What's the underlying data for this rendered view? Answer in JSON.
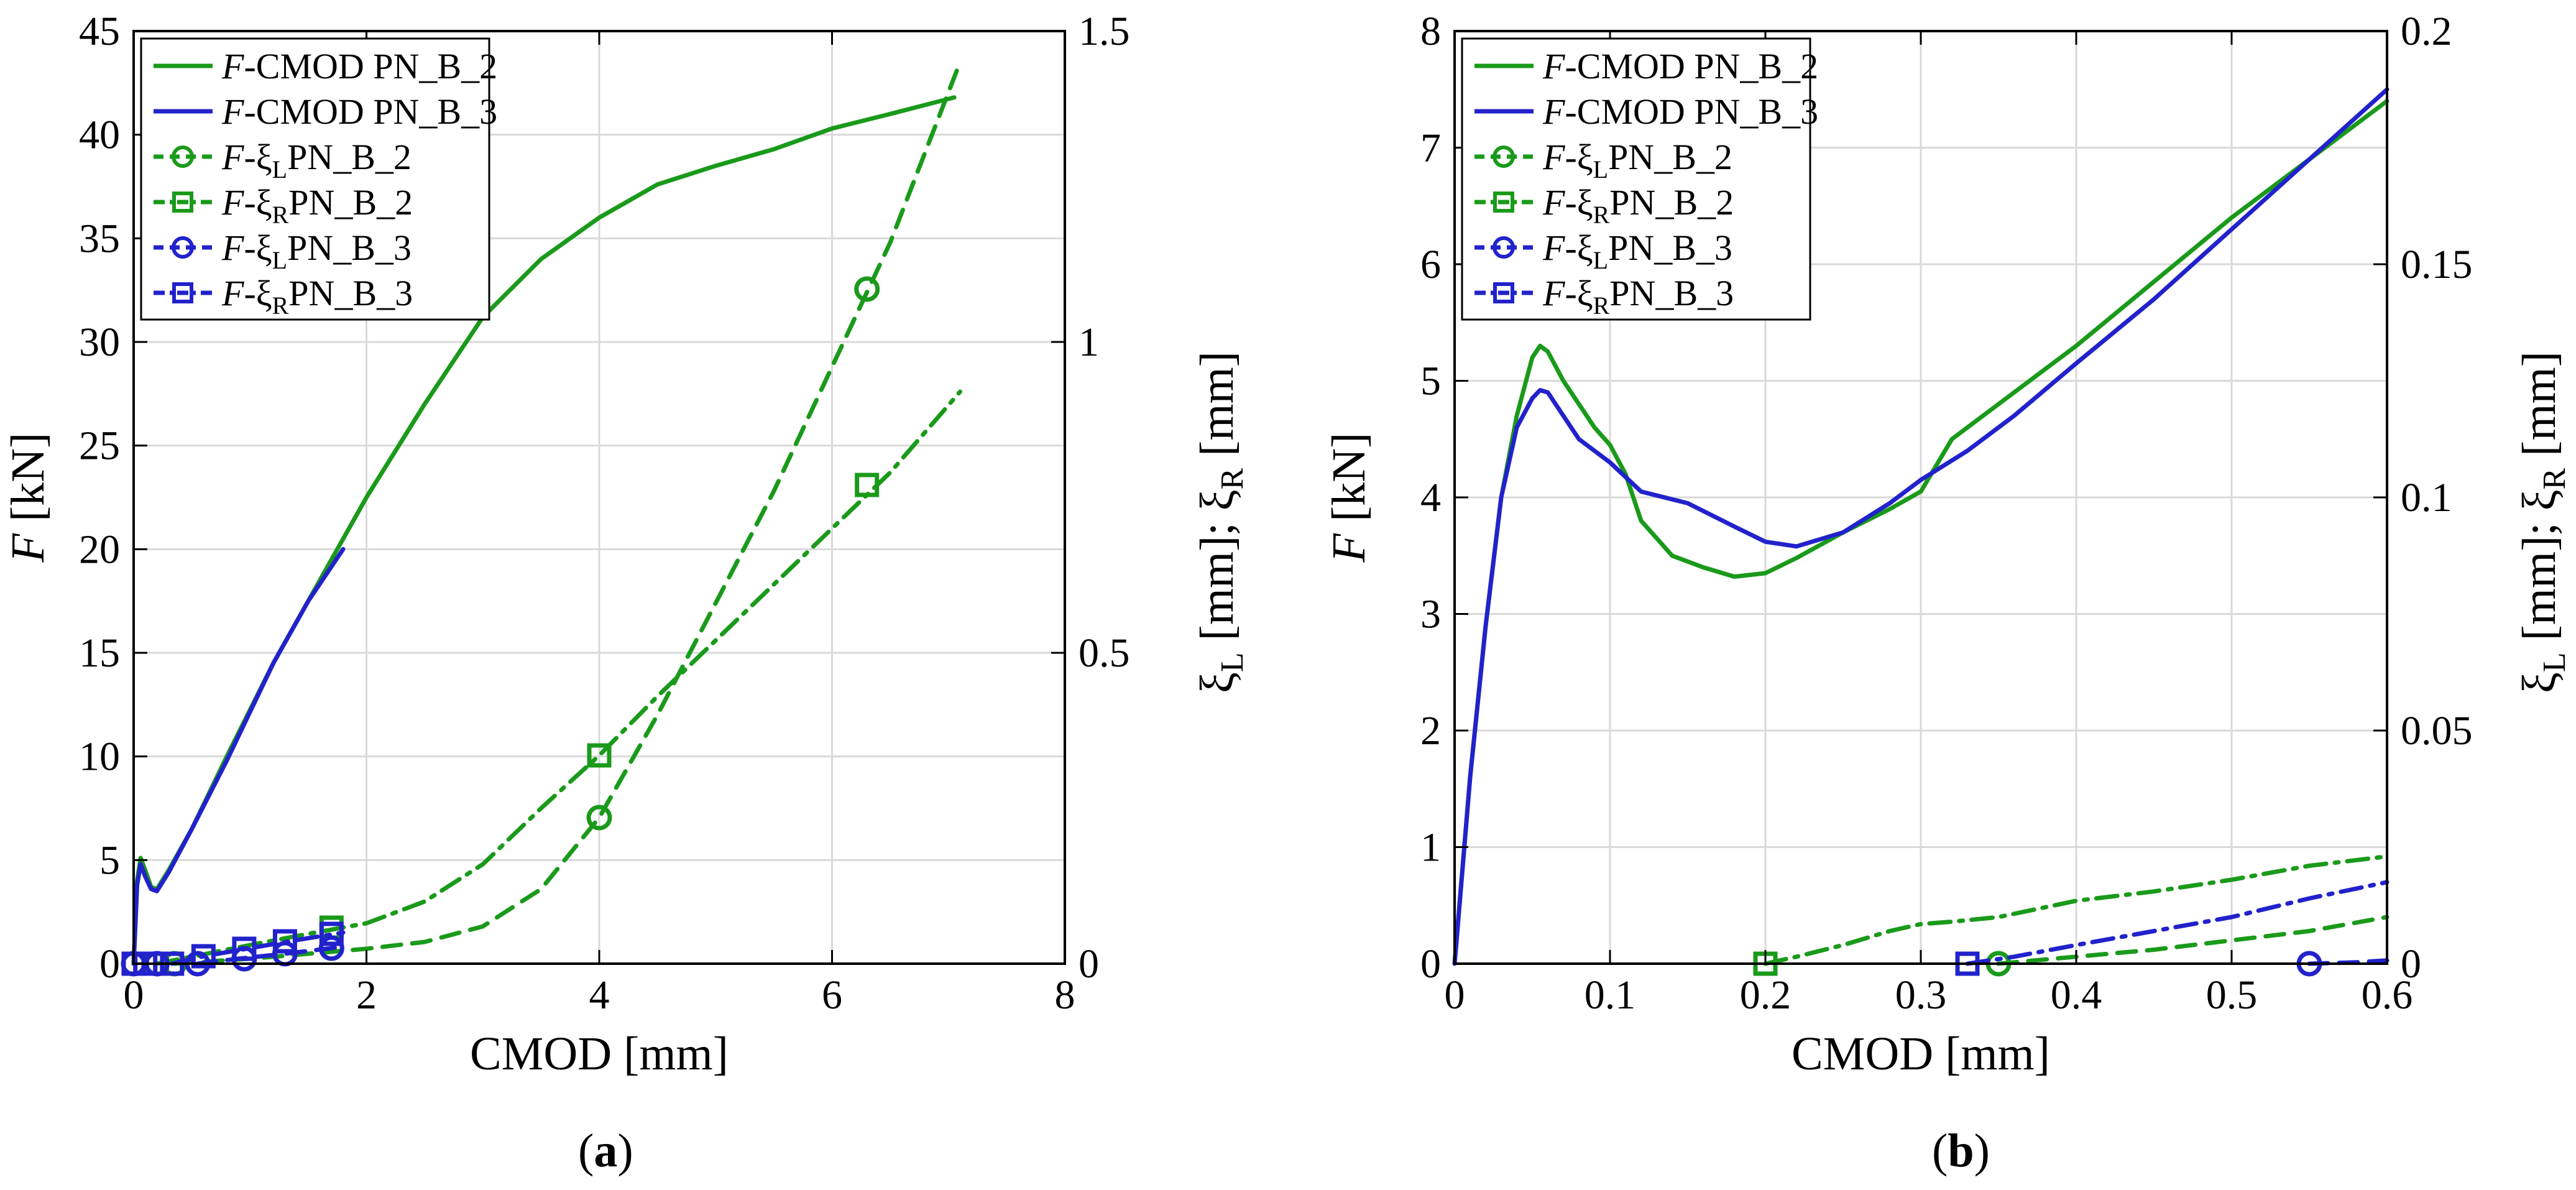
{
  "figure": {
    "panels": [
      {
        "id": "a",
        "caption_open": "(",
        "caption_letter": "a",
        "caption_close": ")"
      },
      {
        "id": "b",
        "caption_open": "(",
        "caption_letter": "b",
        "caption_close": ")"
      }
    ]
  },
  "colors": {
    "green": "#1a9a1a",
    "blue": "#2222cc",
    "grid": "#d9d9d9"
  },
  "legend_entries": [
    {
      "key": "cmod2",
      "prefix": "F",
      "text": "-CMOD PN_B_2",
      "greek": "",
      "sub": "",
      "color": "#1a9a1a",
      "style": "solid",
      "marker": "none"
    },
    {
      "key": "cmod3",
      "prefix": "F",
      "text": "-CMOD PN_B_3",
      "greek": "",
      "sub": "",
      "color": "#2222cc",
      "style": "solid",
      "marker": "none"
    },
    {
      "key": "xiL2",
      "prefix": "F",
      "text": "PN_B_2",
      "greek": "-ξ",
      "sub": "L",
      "color": "#1a9a1a",
      "style": "dashed",
      "marker": "circle"
    },
    {
      "key": "xiR2",
      "prefix": "F",
      "text": "PN_B_2",
      "greek": "-ξ",
      "sub": "R",
      "color": "#1a9a1a",
      "style": "dashdot",
      "marker": "square"
    },
    {
      "key": "xiL3",
      "prefix": "F",
      "text": "PN_B_3",
      "greek": "-ξ",
      "sub": "L",
      "color": "#2222cc",
      "style": "dashed",
      "marker": "circle"
    },
    {
      "key": "xiR3",
      "prefix": "F",
      "text": "PN_B_3",
      "greek": "-ξ",
      "sub": "R",
      "color": "#2222cc",
      "style": "dashdot",
      "marker": "square"
    }
  ],
  "chart_data": [
    {
      "type": "line",
      "panel": "a",
      "xlabel": "CMOD [mm]",
      "ylabel": "F [kN]",
      "y2label": "ξL [mm]; ξR [mm]",
      "xlim": [
        0,
        8
      ],
      "ylim": [
        0,
        45
      ],
      "y2lim": [
        0,
        1.5
      ],
      "xticks": [
        0,
        2,
        4,
        6,
        8
      ],
      "yticks": [
        0,
        5,
        10,
        15,
        20,
        25,
        30,
        35,
        40,
        45
      ],
      "y2ticks": [
        0,
        0.5,
        1,
        1.5
      ],
      "xtick_labels": [
        "0",
        "2",
        "4",
        "6",
        "8"
      ],
      "ytick_labels": [
        "0",
        "5",
        "10",
        "15",
        "20",
        "25",
        "30",
        "35",
        "40",
        "45"
      ],
      "y2tick_labels": [
        "0",
        "0.5",
        "1",
        "1.5"
      ],
      "grid": true,
      "legend_position": "top-left",
      "series": [
        {
          "key": "cmod2",
          "name": "F-CMOD PN_B_2",
          "axis": "left",
          "x": [
            0,
            0.03,
            0.06,
            0.1,
            0.15,
            0.2,
            0.3,
            0.5,
            0.8,
            1.2,
            1.6,
            2.0,
            2.5,
            3.0,
            3.5,
            4.0,
            4.5,
            5.0,
            5.5,
            6.0,
            6.5,
            7.05
          ],
          "y": [
            0,
            4.0,
            5.1,
            4.5,
            3.7,
            3.6,
            4.5,
            6.5,
            10.0,
            14.5,
            18.5,
            22.5,
            27.0,
            31.2,
            34.0,
            36.0,
            37.6,
            38.5,
            39.3,
            40.3,
            41.0,
            41.8
          ]
        },
        {
          "key": "cmod3",
          "name": "F-CMOD PN_B_3",
          "axis": "left",
          "x": [
            0,
            0.03,
            0.06,
            0.1,
            0.15,
            0.2,
            0.3,
            0.5,
            0.8,
            1.2,
            1.5,
            1.8
          ],
          "y": [
            0,
            3.8,
            4.8,
            4.2,
            3.6,
            3.5,
            4.4,
            6.5,
            9.8,
            14.5,
            17.5,
            20.0
          ]
        },
        {
          "key": "xiL2",
          "name": "F-ξL PN_B_2",
          "axis": "right",
          "x": [
            0.35,
            1.0,
            1.5,
            2.0,
            2.5,
            3.0,
            3.5,
            4.0,
            4.5,
            5.0,
            5.5,
            6.0,
            6.5,
            7.1
          ],
          "y": [
            0,
            0.008,
            0.016,
            0.024,
            0.035,
            0.06,
            0.12,
            0.235,
            0.4,
            0.58,
            0.76,
            0.96,
            1.16,
            1.45
          ],
          "markers_x": [
            0.35,
            1.7,
            4.0,
            6.3
          ],
          "markers_y": [
            0,
            0.025,
            0.235,
            1.085
          ]
        },
        {
          "key": "xiR2",
          "name": "F-ξR PN_B_2",
          "axis": "right",
          "x": [
            0.2,
            0.6,
            1.0,
            1.5,
            2.0,
            2.5,
            3.0,
            3.5,
            4.0,
            4.5,
            5.0,
            5.5,
            6.0,
            6.5,
            7.1
          ],
          "y": [
            0,
            0.015,
            0.03,
            0.048,
            0.065,
            0.1,
            0.16,
            0.25,
            0.335,
            0.43,
            0.52,
            0.61,
            0.7,
            0.79,
            0.92
          ],
          "markers_x": [
            0.2,
            1.7,
            4.0,
            6.3
          ],
          "markers_y": [
            0,
            0.058,
            0.335,
            0.77
          ]
        },
        {
          "key": "xiL3",
          "name": "F-ξL PN_B_3",
          "axis": "right",
          "x": [
            0.55,
            0.9,
            1.3,
            1.7,
            1.8
          ],
          "y": [
            0,
            0.008,
            0.016,
            0.025,
            0.028
          ],
          "markers_x": [
            0.0,
            0.2,
            0.55,
            0.95,
            1.3,
            1.7
          ],
          "markers_y": [
            0,
            0,
            0,
            0.008,
            0.016,
            0.025
          ]
        },
        {
          "key": "xiR3",
          "name": "F-ξR PN_B_3",
          "axis": "right",
          "x": [
            0.33,
            0.6,
            1.0,
            1.4,
            1.8
          ],
          "y": [
            0,
            0.012,
            0.025,
            0.038,
            0.05
          ],
          "markers_x": [
            0.0,
            0.1,
            0.33,
            0.6,
            0.95,
            1.3,
            1.7
          ],
          "markers_y": [
            0,
            0,
            0,
            0.012,
            0.024,
            0.036,
            0.048
          ]
        }
      ]
    },
    {
      "type": "line",
      "panel": "b",
      "xlabel": "CMOD [mm]",
      "ylabel": "F [kN]",
      "y2label": "ξL [mm]; ξR [mm]",
      "xlim": [
        0,
        0.6
      ],
      "ylim": [
        0,
        8
      ],
      "y2lim": [
        0,
        0.2
      ],
      "xticks": [
        0,
        0.1,
        0.2,
        0.3,
        0.4,
        0.5,
        0.6
      ],
      "yticks": [
        0,
        1,
        2,
        3,
        4,
        5,
        6,
        7,
        8
      ],
      "y2ticks": [
        0,
        0.05,
        0.1,
        0.15,
        0.2
      ],
      "xtick_labels": [
        "0",
        "0.1",
        "0.2",
        "0.3",
        "0.4",
        "0.5",
        "0.6"
      ],
      "ytick_labels": [
        "0",
        "1",
        "2",
        "3",
        "4",
        "5",
        "6",
        "7",
        "8"
      ],
      "y2tick_labels": [
        "0",
        "0.05",
        "0.1",
        "0.15",
        "0.2"
      ],
      "grid": true,
      "legend_position": "top-left",
      "series": [
        {
          "key": "cmod2",
          "name": "F-CMOD PN_B_2",
          "axis": "left",
          "x": [
            0,
            0.01,
            0.02,
            0.03,
            0.04,
            0.05,
            0.055,
            0.06,
            0.07,
            0.08,
            0.09,
            0.1,
            0.11,
            0.12,
            0.14,
            0.16,
            0.18,
            0.2,
            0.22,
            0.25,
            0.28,
            0.3,
            0.32,
            0.35,
            0.4,
            0.45,
            0.5,
            0.55,
            0.6
          ],
          "y": [
            0,
            1.6,
            2.9,
            4.0,
            4.7,
            5.2,
            5.3,
            5.25,
            5.0,
            4.8,
            4.6,
            4.45,
            4.2,
            3.8,
            3.5,
            3.4,
            3.32,
            3.35,
            3.48,
            3.7,
            3.9,
            4.05,
            4.5,
            4.8,
            5.3,
            5.85,
            6.4,
            6.9,
            7.4
          ]
        },
        {
          "key": "cmod3",
          "name": "F-CMOD PN_B_3",
          "axis": "left",
          "x": [
            0,
            0.01,
            0.02,
            0.03,
            0.04,
            0.05,
            0.055,
            0.06,
            0.07,
            0.08,
            0.1,
            0.12,
            0.15,
            0.18,
            0.2,
            0.22,
            0.25,
            0.28,
            0.3,
            0.33,
            0.36,
            0.4,
            0.45,
            0.5,
            0.55,
            0.6
          ],
          "y": [
            0,
            1.6,
            2.9,
            4.0,
            4.6,
            4.85,
            4.92,
            4.9,
            4.7,
            4.5,
            4.3,
            4.05,
            3.95,
            3.75,
            3.62,
            3.58,
            3.7,
            3.95,
            4.15,
            4.4,
            4.7,
            5.15,
            5.7,
            6.3,
            6.9,
            7.5
          ]
        },
        {
          "key": "xiL2",
          "name": "F-ξL PN_B_2",
          "axis": "right",
          "x": [
            0.35,
            0.45,
            0.55,
            0.6
          ],
          "y": [
            0,
            0.003,
            0.007,
            0.01
          ],
          "markers_x": [
            0.35
          ],
          "markers_y": [
            0
          ]
        },
        {
          "key": "xiR2",
          "name": "F-ξR PN_B_2",
          "axis": "right",
          "x": [
            0.2,
            0.22,
            0.25,
            0.28,
            0.3,
            0.32,
            0.35,
            0.4,
            0.45,
            0.5,
            0.55,
            0.6
          ],
          "y": [
            0,
            0.0015,
            0.004,
            0.007,
            0.0085,
            0.009,
            0.01,
            0.0135,
            0.0155,
            0.018,
            0.021,
            0.023
          ],
          "markers_x": [
            0.2
          ],
          "markers_y": [
            0
          ]
        },
        {
          "key": "xiL3",
          "name": "F-ξL PN_B_3",
          "axis": "right",
          "x": [
            0.55,
            0.58,
            0.6
          ],
          "y": [
            0,
            0.0003,
            0.0007
          ],
          "markers_x": [
            0.55
          ],
          "markers_y": [
            0
          ]
        },
        {
          "key": "xiR3",
          "name": "F-ξR PN_B_3",
          "axis": "right",
          "x": [
            0.33,
            0.36,
            0.4,
            0.45,
            0.5,
            0.55,
            0.6
          ],
          "y": [
            0,
            0.0015,
            0.004,
            0.007,
            0.01,
            0.014,
            0.0175
          ],
          "markers_x": [
            0.33
          ],
          "markers_y": [
            0
          ]
        }
      ]
    }
  ]
}
